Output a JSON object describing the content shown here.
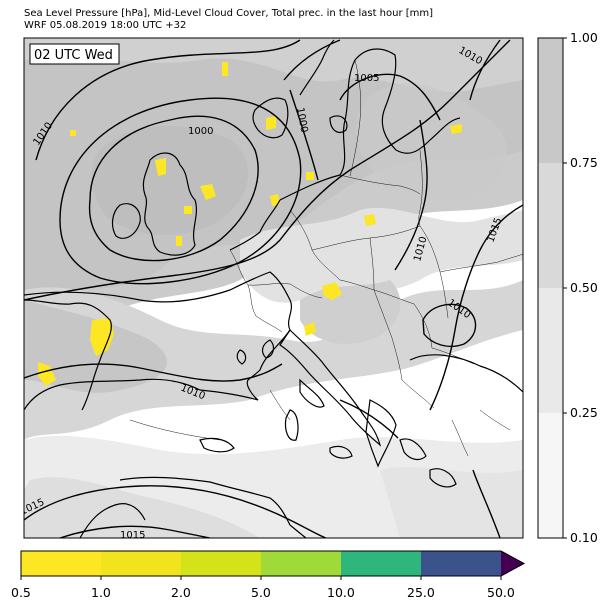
{
  "header": {
    "title": "Sea Level Pressure [hPa], Mid-Level Cloud Cover, Total prec. in the last hour [mm]",
    "subtitle": "WRF 05.08.2019 18:00 UTC +32"
  },
  "map": {
    "time_label": "02 UTC Wed",
    "isobar_labels": [
      "1010",
      "1000",
      "1005",
      "1000",
      "1010",
      "1010",
      "1015",
      "1010",
      "1010",
      "1015",
      "1015"
    ]
  },
  "cloud_colorbar": {
    "ticks": [
      "1.00",
      "0.75",
      "0.50",
      "0.25",
      "0.10"
    ],
    "colors": [
      "#c8c8c8",
      "#d9d9d9",
      "#e9e9e9",
      "#f6f6f6"
    ]
  },
  "precip_colorbar": {
    "ticks": [
      "0.5",
      "1.0",
      "2.0",
      "5.0",
      "10.0",
      "25.0",
      "50.0"
    ],
    "colors": [
      "#fde725",
      "#f2e31f",
      "#d4e21a",
      "#a0da39",
      "#2eb67c",
      "#3b528b",
      "#440154"
    ]
  }
}
